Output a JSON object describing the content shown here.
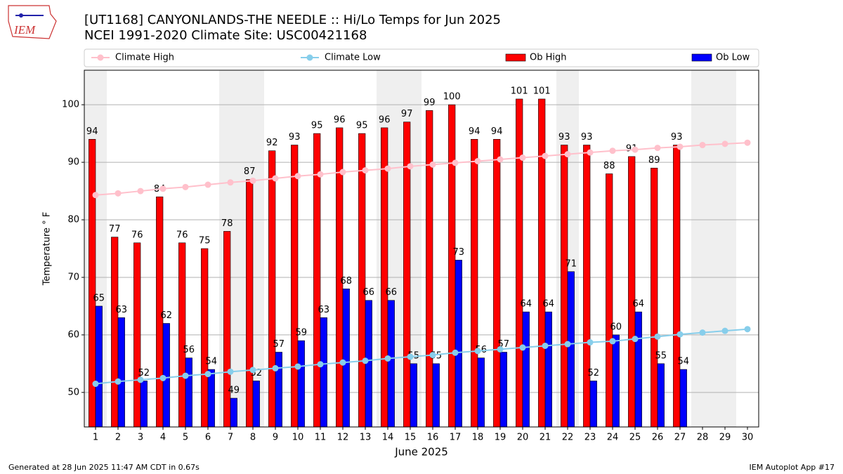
{
  "chart_data": {
    "type": "bar",
    "title": "[UT1168] CANYONLANDS-THE NEEDLE :: Hi/Lo Temps for Jun 2025",
    "subtitle": "NCEI 1991-2020 Climate Site: USC00421168",
    "logo_text": "IEM",
    "xlabel": "June 2025",
    "ylabel": "Temperature $^\\circ$F",
    "footer_left": "Generated at 28 Jun 2025 11:47 AM CDT in 0.67s",
    "footer_right": "IEM Autoplot App #17",
    "x": [
      1,
      2,
      3,
      4,
      5,
      6,
      7,
      8,
      9,
      10,
      11,
      12,
      13,
      14,
      15,
      16,
      17,
      18,
      19,
      20,
      21,
      22,
      23,
      24,
      25,
      26,
      27,
      28,
      29,
      30
    ],
    "xlim": [
      0.5,
      30.5
    ],
    "xticks": [
      1,
      2,
      3,
      4,
      5,
      6,
      7,
      8,
      9,
      10,
      11,
      12,
      13,
      14,
      15,
      16,
      17,
      18,
      19,
      20,
      21,
      22,
      23,
      24,
      25,
      26,
      27,
      28,
      29,
      30
    ],
    "ylim": [
      44,
      106
    ],
    "yticks": [
      50,
      60,
      70,
      80,
      90,
      100
    ],
    "grid": true,
    "shaded_days": [
      1,
      7,
      8,
      14,
      15,
      22,
      28,
      29
    ],
    "series": [
      {
        "name": "Climate High",
        "type": "line",
        "color": "#ffc0cb",
        "values": [
          84.3,
          84.6,
          85.0,
          85.4,
          85.7,
          86.1,
          86.5,
          86.8,
          87.2,
          87.6,
          87.9,
          88.3,
          88.6,
          88.9,
          89.3,
          89.6,
          89.9,
          90.2,
          90.5,
          90.8,
          91.1,
          91.4,
          91.7,
          92.0,
          92.2,
          92.5,
          92.7,
          93.0,
          93.2,
          93.4
        ]
      },
      {
        "name": "Climate Low",
        "type": "line",
        "color": "#87ceeb",
        "values": [
          51.5,
          51.9,
          52.2,
          52.5,
          52.9,
          53.2,
          53.6,
          53.9,
          54.2,
          54.5,
          54.9,
          55.2,
          55.5,
          55.9,
          56.2,
          56.5,
          56.9,
          57.2,
          57.5,
          57.8,
          58.1,
          58.4,
          58.7,
          58.9,
          59.3,
          59.7,
          60.1,
          60.4,
          60.7,
          61.0
        ]
      },
      {
        "name": "Ob High",
        "type": "bar",
        "color": "#ff0000",
        "values": [
          94,
          77,
          76,
          84,
          76,
          75,
          78,
          87,
          92,
          93,
          95,
          96,
          95,
          96,
          97,
          99,
          100,
          94,
          94,
          101,
          101,
          93,
          93,
          88,
          91,
          89,
          93,
          null,
          null,
          null
        ]
      },
      {
        "name": "Ob Low",
        "type": "bar",
        "color": "#0000ff",
        "values": [
          65,
          63,
          52,
          62,
          56,
          54,
          49,
          52,
          57,
          59,
          63,
          68,
          66,
          66,
          55,
          55,
          73,
          56,
          57,
          64,
          64,
          71,
          52,
          60,
          64,
          55,
          54,
          null,
          null,
          null
        ]
      }
    ]
  }
}
